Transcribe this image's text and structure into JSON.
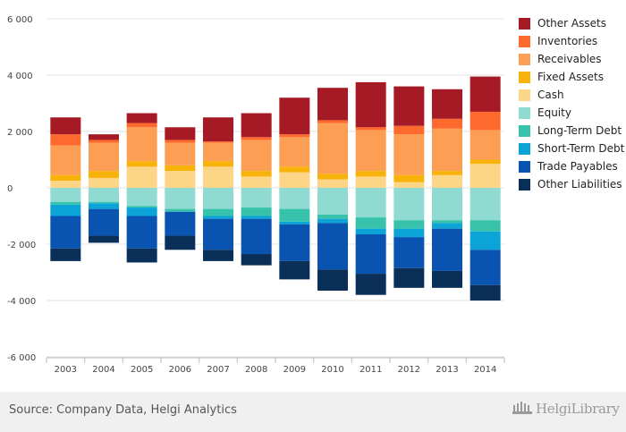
{
  "chart_data": {
    "type": "bar",
    "stacked": true,
    "categories": [
      "2003",
      "2004",
      "2005",
      "2006",
      "2007",
      "2008",
      "2009",
      "2010",
      "2011",
      "2012",
      "2013",
      "2014"
    ],
    "ylim": [
      -6000,
      6000
    ],
    "yticks": [
      6000,
      4000,
      2000,
      0,
      -2000,
      -4000,
      -6000
    ],
    "ytick_labels": [
      "6 000",
      "4 000",
      "2 000",
      "0",
      "-2 000",
      "-4 000",
      "-6 000"
    ],
    "grid": true,
    "legend_position": "right",
    "positive_series": [
      {
        "name": "Cash",
        "color": "#fdd587",
        "values": [
          250,
          350,
          750,
          600,
          750,
          400,
          550,
          300,
          400,
          200,
          450,
          850
        ]
      },
      {
        "name": "Fixed Assets",
        "color": "#f8b30a",
        "values": [
          200,
          250,
          200,
          200,
          200,
          200,
          200,
          200,
          200,
          250,
          150,
          150
        ]
      },
      {
        "name": "Receivables",
        "color": "#fc9e53",
        "values": [
          1050,
          1000,
          1200,
          800,
          650,
          1100,
          1050,
          1800,
          1450,
          1450,
          1500,
          1050
        ]
      },
      {
        "name": "Inventories",
        "color": "#fe6a2e",
        "values": [
          400,
          100,
          150,
          100,
          50,
          100,
          100,
          100,
          100,
          300,
          350,
          650
        ]
      },
      {
        "name": "Other Assets",
        "color": "#a51a24",
        "values": [
          600,
          200,
          350,
          450,
          850,
          850,
          1300,
          1150,
          1600,
          1400,
          1050,
          1250
        ]
      }
    ],
    "negative_series": [
      {
        "name": "Equity",
        "color": "#8fdad1",
        "values": [
          -500,
          -500,
          -650,
          -750,
          -750,
          -700,
          -750,
          -950,
          -1050,
          -1150,
          -1150,
          -1150
        ]
      },
      {
        "name": "Long-Term Debt",
        "color": "#37c3ab",
        "values": [
          -100,
          -50,
          -50,
          -100,
          -250,
          -300,
          -450,
          -150,
          -400,
          -300,
          -100,
          -400
        ]
      },
      {
        "name": "Short-Term Debt",
        "color": "#0ca3d6",
        "values": [
          -400,
          -200,
          -300,
          0,
          -100,
          -100,
          -100,
          -150,
          -200,
          -300,
          -200,
          -650
        ]
      },
      {
        "name": "Trade Payables",
        "color": "#0a54b1",
        "values": [
          -1150,
          -950,
          -1150,
          -850,
          -1100,
          -1250,
          -1300,
          -1650,
          -1400,
          -1100,
          -1500,
          -1250
        ]
      },
      {
        "name": "Other Liabilities",
        "color": "#0a2f58",
        "values": [
          -450,
          -250,
          -500,
          -500,
          -400,
          -400,
          -650,
          -750,
          -750,
          -700,
          -600,
          -550
        ]
      }
    ],
    "legend": [
      {
        "label": "Other Assets",
        "color": "#a51a24"
      },
      {
        "label": "Inventories",
        "color": "#fe6a2e"
      },
      {
        "label": "Receivables",
        "color": "#fc9e53"
      },
      {
        "label": "Fixed Assets",
        "color": "#f8b30a"
      },
      {
        "label": "Cash",
        "color": "#fdd587"
      },
      {
        "label": "Equity",
        "color": "#8fdad1"
      },
      {
        "label": "Long-Term Debt",
        "color": "#37c3ab"
      },
      {
        "label": "Short-Term Debt",
        "color": "#0ca3d6"
      },
      {
        "label": "Trade Payables",
        "color": "#0a54b1"
      },
      {
        "label": "Other Liabilities",
        "color": "#0a2f58"
      }
    ]
  },
  "footer": {
    "source": "Source: Company Data, Helgi Analytics",
    "brand": "HelgiLibrary",
    "brand_icon": "helgi-logo-icon"
  }
}
